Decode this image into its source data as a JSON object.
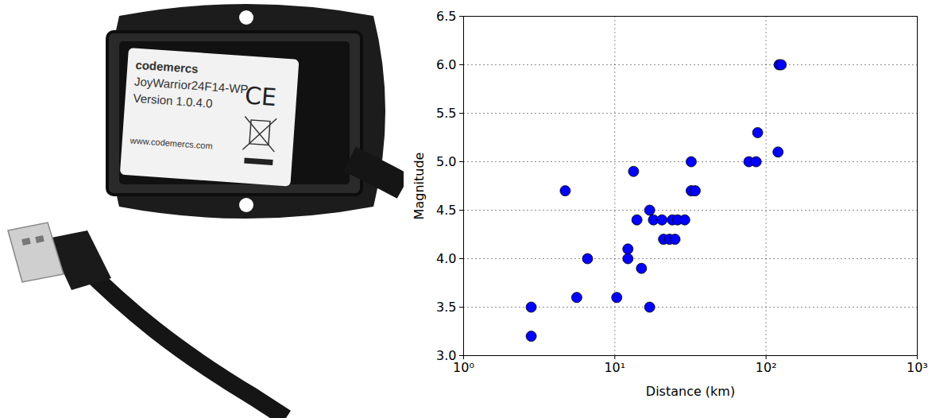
{
  "photo": {
    "label_lines": [
      "codemercs",
      "JoyWarrior24F14-WP",
      "Version 1.0.4.0",
      "www.codemercs.com"
    ],
    "mark": "CE"
  },
  "chart_data": {
    "type": "scatter",
    "x_label": "Distance (km)",
    "y_label": "Magnitude",
    "x": [
      2.8,
      2.8,
      4.7,
      6.6,
      5.6,
      10.3,
      12.2,
      12.2,
      13.3,
      14.0,
      15.0,
      17.0,
      17.0,
      18.0,
      20.5,
      21.0,
      23.0,
      24.0,
      25.0,
      26.0,
      29.0,
      32.0,
      32.0,
      34.0,
      77,
      86,
      88,
      120,
      122,
      126
    ],
    "values": [
      3.2,
      3.5,
      4.7,
      4.0,
      3.6,
      3.6,
      4.1,
      4.0,
      4.9,
      4.4,
      3.9,
      4.5,
      3.5,
      4.4,
      4.4,
      4.2,
      4.2,
      4.4,
      4.2,
      4.4,
      4.4,
      5.0,
      4.7,
      4.7,
      5.0,
      5.0,
      5.3,
      5.1,
      6.0,
      6.0
    ],
    "color": "#0000ff",
    "marker": "circle",
    "log": "x",
    "grid": true,
    "xlim": [
      1,
      1000
    ],
    "xticks": [
      {
        "value": 1,
        "label": "10⁰"
      },
      {
        "value": 10,
        "label": "10¹"
      },
      {
        "value": 100,
        "label": "10²"
      },
      {
        "value": 1000,
        "label": "10³"
      }
    ],
    "ylim": [
      3,
      6.5
    ],
    "yticks": [
      {
        "value": 3,
        "label": "3.0"
      },
      3.5,
      {
        "value": 4,
        "label": "4.0"
      },
      4.5,
      {
        "value": 5,
        "label": "5.0"
      },
      5.5,
      {
        "value": 6,
        "label": "6.0"
      },
      6.5
    ]
  }
}
